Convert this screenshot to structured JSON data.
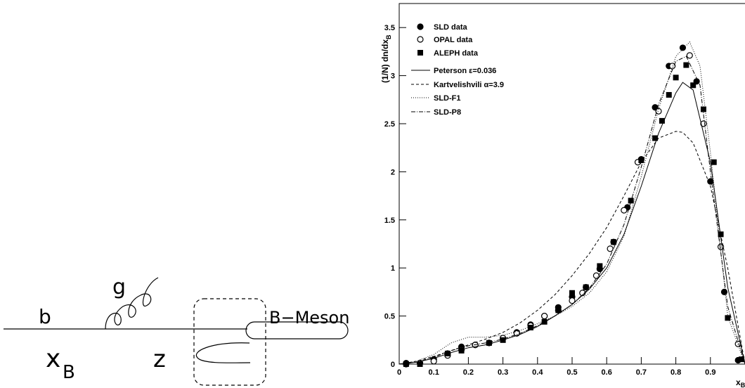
{
  "diagram": {
    "quark": "b",
    "gluon": "g",
    "fraction": "x",
    "fraction_sub": "B",
    "z": "z",
    "meson": "B−Meson"
  },
  "chart_data": {
    "type": "line",
    "ylabel": "(1/N) dn/dx",
    "ylabel_sub": "B",
    "xlabel": "x",
    "xlabel_sub": "B",
    "xlim": [
      0,
      1
    ],
    "ylim": [
      0,
      3.75
    ],
    "xticks": [
      0,
      0.1,
      0.2,
      0.3,
      0.4,
      0.5,
      0.6,
      0.7,
      0.8,
      0.9
    ],
    "yticks": [
      0,
      0.5,
      1,
      1.5,
      2,
      2.5,
      3,
      3.5
    ],
    "series": [
      {
        "name": "SLD data",
        "color": "#000000",
        "marker": "circle-filled",
        "x": [
          0.02,
          0.06,
          0.1,
          0.14,
          0.18,
          0.22,
          0.26,
          0.3,
          0.34,
          0.38,
          0.42,
          0.46,
          0.5,
          0.54,
          0.58,
          0.62,
          0.66,
          0.7,
          0.74,
          0.78,
          0.82,
          0.86,
          0.9,
          0.94,
          0.98
        ],
        "values": [
          0.01,
          0.01,
          0.05,
          0.11,
          0.18,
          0.2,
          0.22,
          0.27,
          0.33,
          0.41,
          0.5,
          0.59,
          0.7,
          0.8,
          0.99,
          1.27,
          1.63,
          2.13,
          2.67,
          3.1,
          3.29,
          2.94,
          1.9,
          0.75,
          0.04
        ]
      },
      {
        "name": "OPAL data",
        "color": "#000000",
        "marker": "circle-open",
        "x": [
          0.02,
          0.06,
          0.1,
          0.14,
          0.18,
          0.22,
          0.26,
          0.3,
          0.34,
          0.38,
          0.42,
          0.46,
          0.5,
          0.53,
          0.57,
          0.61,
          0.65,
          0.69,
          0.75,
          0.79,
          0.84,
          0.88,
          0.93,
          0.98
        ],
        "values": [
          0,
          0.01,
          0.03,
          0.09,
          0.15,
          0.2,
          0.22,
          0.27,
          0.32,
          0.4,
          0.5,
          0.56,
          0.66,
          0.74,
          0.92,
          1.2,
          1.6,
          2.1,
          2.63,
          3.1,
          3.21,
          2.5,
          1.22,
          0.21
        ]
      },
      {
        "name": "ALEPH data",
        "color": "#000000",
        "marker": "square-filled",
        "x": [
          0.02,
          0.06,
          0.14,
          0.18,
          0.26,
          0.3,
          0.38,
          0.42,
          0.46,
          0.5,
          0.54,
          0.58,
          0.62,
          0.67,
          0.7,
          0.74,
          0.76,
          0.78,
          0.8,
          0.83,
          0.85,
          0.88,
          0.91,
          0.93,
          0.95,
          0.99
        ],
        "values": [
          0,
          0,
          0.11,
          0.14,
          0.22,
          0.25,
          0.38,
          0.44,
          0.56,
          0.74,
          0.8,
          1.02,
          1.27,
          1.7,
          2.12,
          2.35,
          2.53,
          2.8,
          2.98,
          3.11,
          2.9,
          2.65,
          2.1,
          1.35,
          0.48,
          0.05
        ]
      },
      {
        "name": "Peterson ε=0.036",
        "color": "#000000",
        "dash": "none",
        "x": [
          0,
          0.05,
          0.1,
          0.15,
          0.2,
          0.25,
          0.3,
          0.35,
          0.4,
          0.45,
          0.5,
          0.55,
          0.6,
          0.65,
          0.7,
          0.75,
          0.8,
          0.82,
          0.85,
          0.9,
          0.95,
          1
        ],
        "values": [
          0,
          0.02,
          0.06,
          0.12,
          0.17,
          0.2,
          0.25,
          0.31,
          0.39,
          0.5,
          0.62,
          0.78,
          1.0,
          1.35,
          1.85,
          2.4,
          2.82,
          2.93,
          2.85,
          2.1,
          0.8,
          0
        ]
      },
      {
        "name": "Kartvelishvili α=3.9",
        "color": "#000000",
        "dash": "4 3",
        "x": [
          0,
          0.05,
          0.1,
          0.15,
          0.2,
          0.25,
          0.3,
          0.35,
          0.4,
          0.45,
          0.5,
          0.55,
          0.6,
          0.65,
          0.7,
          0.75,
          0.8,
          0.82,
          0.85,
          0.9,
          0.95,
          1
        ],
        "values": [
          0,
          0.03,
          0.08,
          0.14,
          0.2,
          0.26,
          0.33,
          0.43,
          0.56,
          0.72,
          0.92,
          1.15,
          1.42,
          1.75,
          2.1,
          2.35,
          2.42,
          2.41,
          2.3,
          1.85,
          1.0,
          0
        ]
      },
      {
        "name": "SLD-F1",
        "color": "#000000",
        "dash": "1 2",
        "x": [
          0,
          0.05,
          0.1,
          0.15,
          0.2,
          0.25,
          0.3,
          0.35,
          0.4,
          0.45,
          0.5,
          0.55,
          0.6,
          0.65,
          0.7,
          0.75,
          0.8,
          0.84,
          0.87,
          0.9,
          0.95,
          1
        ],
        "values": [
          0,
          0.03,
          0.1,
          0.22,
          0.28,
          0.28,
          0.3,
          0.35,
          0.42,
          0.5,
          0.6,
          0.74,
          0.96,
          1.33,
          1.95,
          2.65,
          3.2,
          3.35,
          3.1,
          2.2,
          0.5,
          0
        ]
      },
      {
        "name": "SLD-P8",
        "color": "#000000",
        "dash": "6 2 1 2",
        "x": [
          0,
          0.05,
          0.1,
          0.15,
          0.2,
          0.25,
          0.3,
          0.35,
          0.4,
          0.45,
          0.5,
          0.55,
          0.6,
          0.65,
          0.7,
          0.75,
          0.8,
          0.83,
          0.87,
          0.9,
          0.95,
          1
        ],
        "values": [
          0,
          0.02,
          0.07,
          0.14,
          0.19,
          0.22,
          0.26,
          0.32,
          0.4,
          0.5,
          0.62,
          0.79,
          1.04,
          1.45,
          2.05,
          2.7,
          3.15,
          3.2,
          2.9,
          2.0,
          0.6,
          0
        ]
      }
    ]
  }
}
